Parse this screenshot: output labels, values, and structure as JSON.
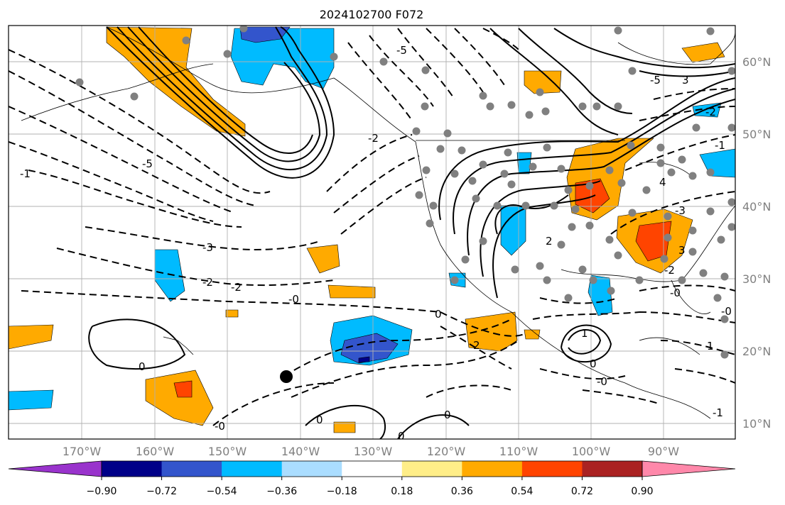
{
  "title": "2024102700 F072",
  "map": {
    "lat_labels": [
      "60°N",
      "50°N",
      "40°N",
      "30°N",
      "20°N",
      "10°N"
    ],
    "lon_labels": [
      "170°W",
      "160°W",
      "150°W",
      "140°W",
      "130°W",
      "120°W",
      "110°W",
      "100°W",
      "90°W"
    ],
    "contour_labels": [
      "-5",
      "-5",
      "-3",
      "-2",
      "-2",
      "-0",
      "0",
      "-0",
      "-2",
      "-1",
      "2",
      "2",
      "1",
      "-5",
      "3",
      "-2",
      "-1",
      "4",
      "-3",
      "3",
      "-0",
      "0",
      "0",
      "0",
      "-0",
      "-2",
      "0",
      "0",
      "-0",
      "1",
      "-1"
    ],
    "colorbar": {
      "ticks": [
        "−0.90",
        "−0.72",
        "−0.54",
        "−0.36",
        "−0.18",
        "0.18",
        "0.36",
        "0.54",
        "0.72",
        "0.90"
      ],
      "colors": [
        "#9933cc",
        "#000088",
        "#3355cc",
        "#00bbff",
        "#aaddff",
        "#ffffff",
        "#ffee88",
        "#ffaa00",
        "#ff4400",
        "#aa2222",
        "#ff88aa"
      ]
    },
    "colors": {
      "grid": "#b0b0b0",
      "contour": "#000000",
      "station": "#808080",
      "orange": "#ffaa00",
      "red": "#ff4400",
      "cyan": "#00bbff",
      "blue": "#3355cc",
      "navy": "#000088"
    }
  }
}
